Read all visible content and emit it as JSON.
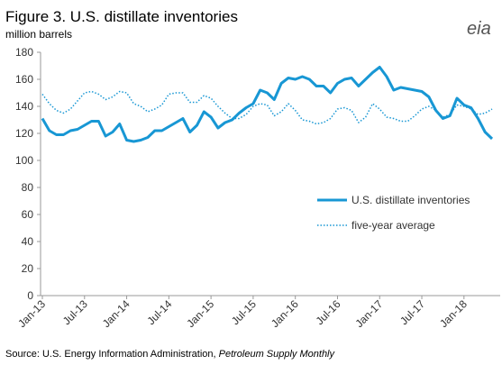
{
  "chart_data": {
    "type": "line",
    "title": "Figure 3. U.S. distillate inventories",
    "y_label": "million barrels",
    "logo": "eia",
    "source": "Source: U.S. Energy Information Administration, ",
    "source_italic": "Petroleum Supply Monthly",
    "categories": [
      "Jan-13",
      null,
      null,
      null,
      null,
      null,
      "Jul-13",
      null,
      null,
      null,
      null,
      null,
      "Jan-14",
      null,
      null,
      null,
      null,
      null,
      "Jul-14",
      null,
      null,
      null,
      null,
      null,
      "Jan-15",
      null,
      null,
      null,
      null,
      null,
      "Jul-15",
      null,
      null,
      null,
      null,
      null,
      "Jan-16",
      null,
      null,
      null,
      null,
      null,
      "Jul-16",
      null,
      null,
      null,
      null,
      null,
      "Jan-17",
      null,
      null,
      null,
      null,
      null,
      "Jul-17",
      null,
      null,
      null,
      null,
      null,
      "Jan-18",
      null,
      null,
      null,
      null
    ],
    "series": [
      {
        "name": "U.S. distillate inventories",
        "color": "#1897d4",
        "style": "solid",
        "values": [
          131,
          122,
          119,
          119,
          122,
          123,
          126,
          129,
          129,
          118,
          121,
          127,
          115,
          114,
          115,
          117,
          122,
          122,
          125,
          128,
          131,
          121,
          126,
          136,
          132,
          124,
          128,
          130,
          135,
          139,
          142,
          152,
          150,
          145,
          157,
          161,
          160,
          162,
          160,
          155,
          155,
          150,
          157,
          160,
          161,
          155,
          160,
          165,
          169,
          162,
          152,
          154,
          153,
          152,
          151,
          147,
          137,
          131,
          133,
          146,
          141,
          139,
          131,
          121,
          116
        ]
      },
      {
        "name": "five-year average",
        "color": "#1897d4",
        "style": "dotted",
        "values": [
          149,
          142,
          137,
          135,
          138,
          144,
          150,
          151,
          149,
          145,
          147,
          151,
          150,
          142,
          140,
          136,
          138,
          141,
          149,
          150,
          150,
          143,
          143,
          148,
          146,
          140,
          135,
          131,
          131,
          134,
          140,
          142,
          141,
          133,
          136,
          142,
          137,
          130,
          129,
          127,
          128,
          131,
          138,
          139,
          137,
          128,
          132,
          142,
          138,
          132,
          131,
          129,
          129,
          133,
          138,
          140,
          137,
          132,
          134,
          141,
          140,
          138,
          134,
          135,
          138
        ]
      }
    ],
    "ylim": [
      0,
      180
    ],
    "yticks": [
      0,
      20,
      40,
      60,
      80,
      100,
      120,
      140,
      160,
      180
    ],
    "legend": "inside-right"
  }
}
